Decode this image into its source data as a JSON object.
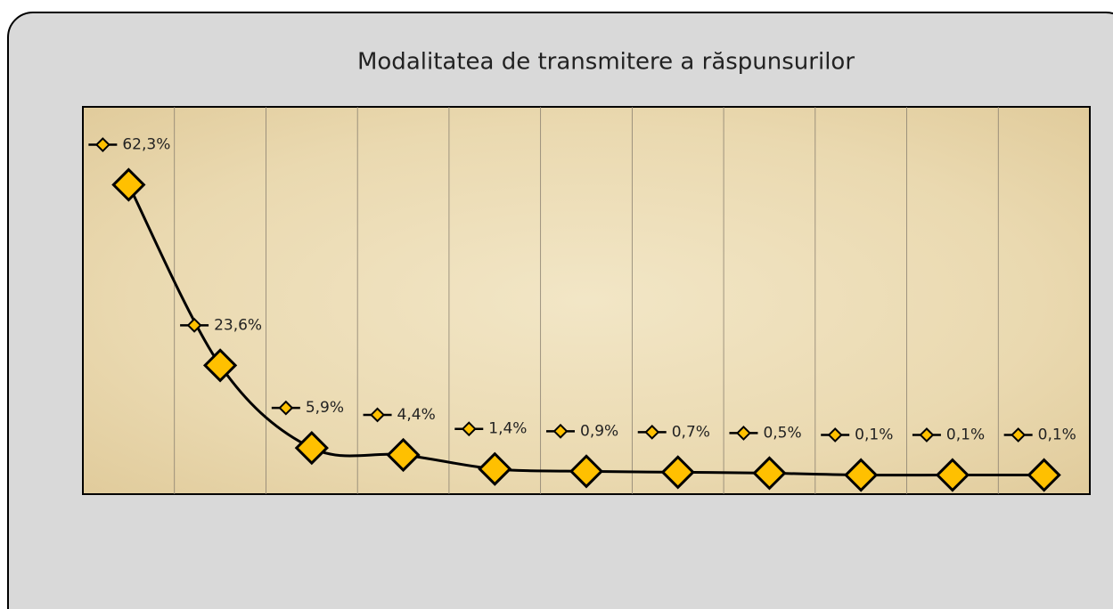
{
  "chart_data": {
    "type": "line",
    "title": "Modalitatea de transmitere a răspunsurilor",
    "categories": [
      null,
      null,
      null,
      null,
      null,
      null,
      null,
      null,
      null,
      null,
      null
    ],
    "values": [
      62.3,
      23.6,
      5.9,
      4.4,
      1.4,
      0.9,
      0.7,
      0.5,
      0.1,
      0.1,
      0.1
    ],
    "value_labels": [
      "62,3%",
      "23,6%",
      "5,9%",
      "4,4%",
      "1,4%",
      "0,9%",
      "0,7%",
      "0,5%",
      "0,1%",
      "0,1%",
      "0,1%"
    ],
    "color": "#ffc000",
    "ylim": [
      -4,
      79
    ],
    "smooth": true,
    "grid": "vertical"
  }
}
